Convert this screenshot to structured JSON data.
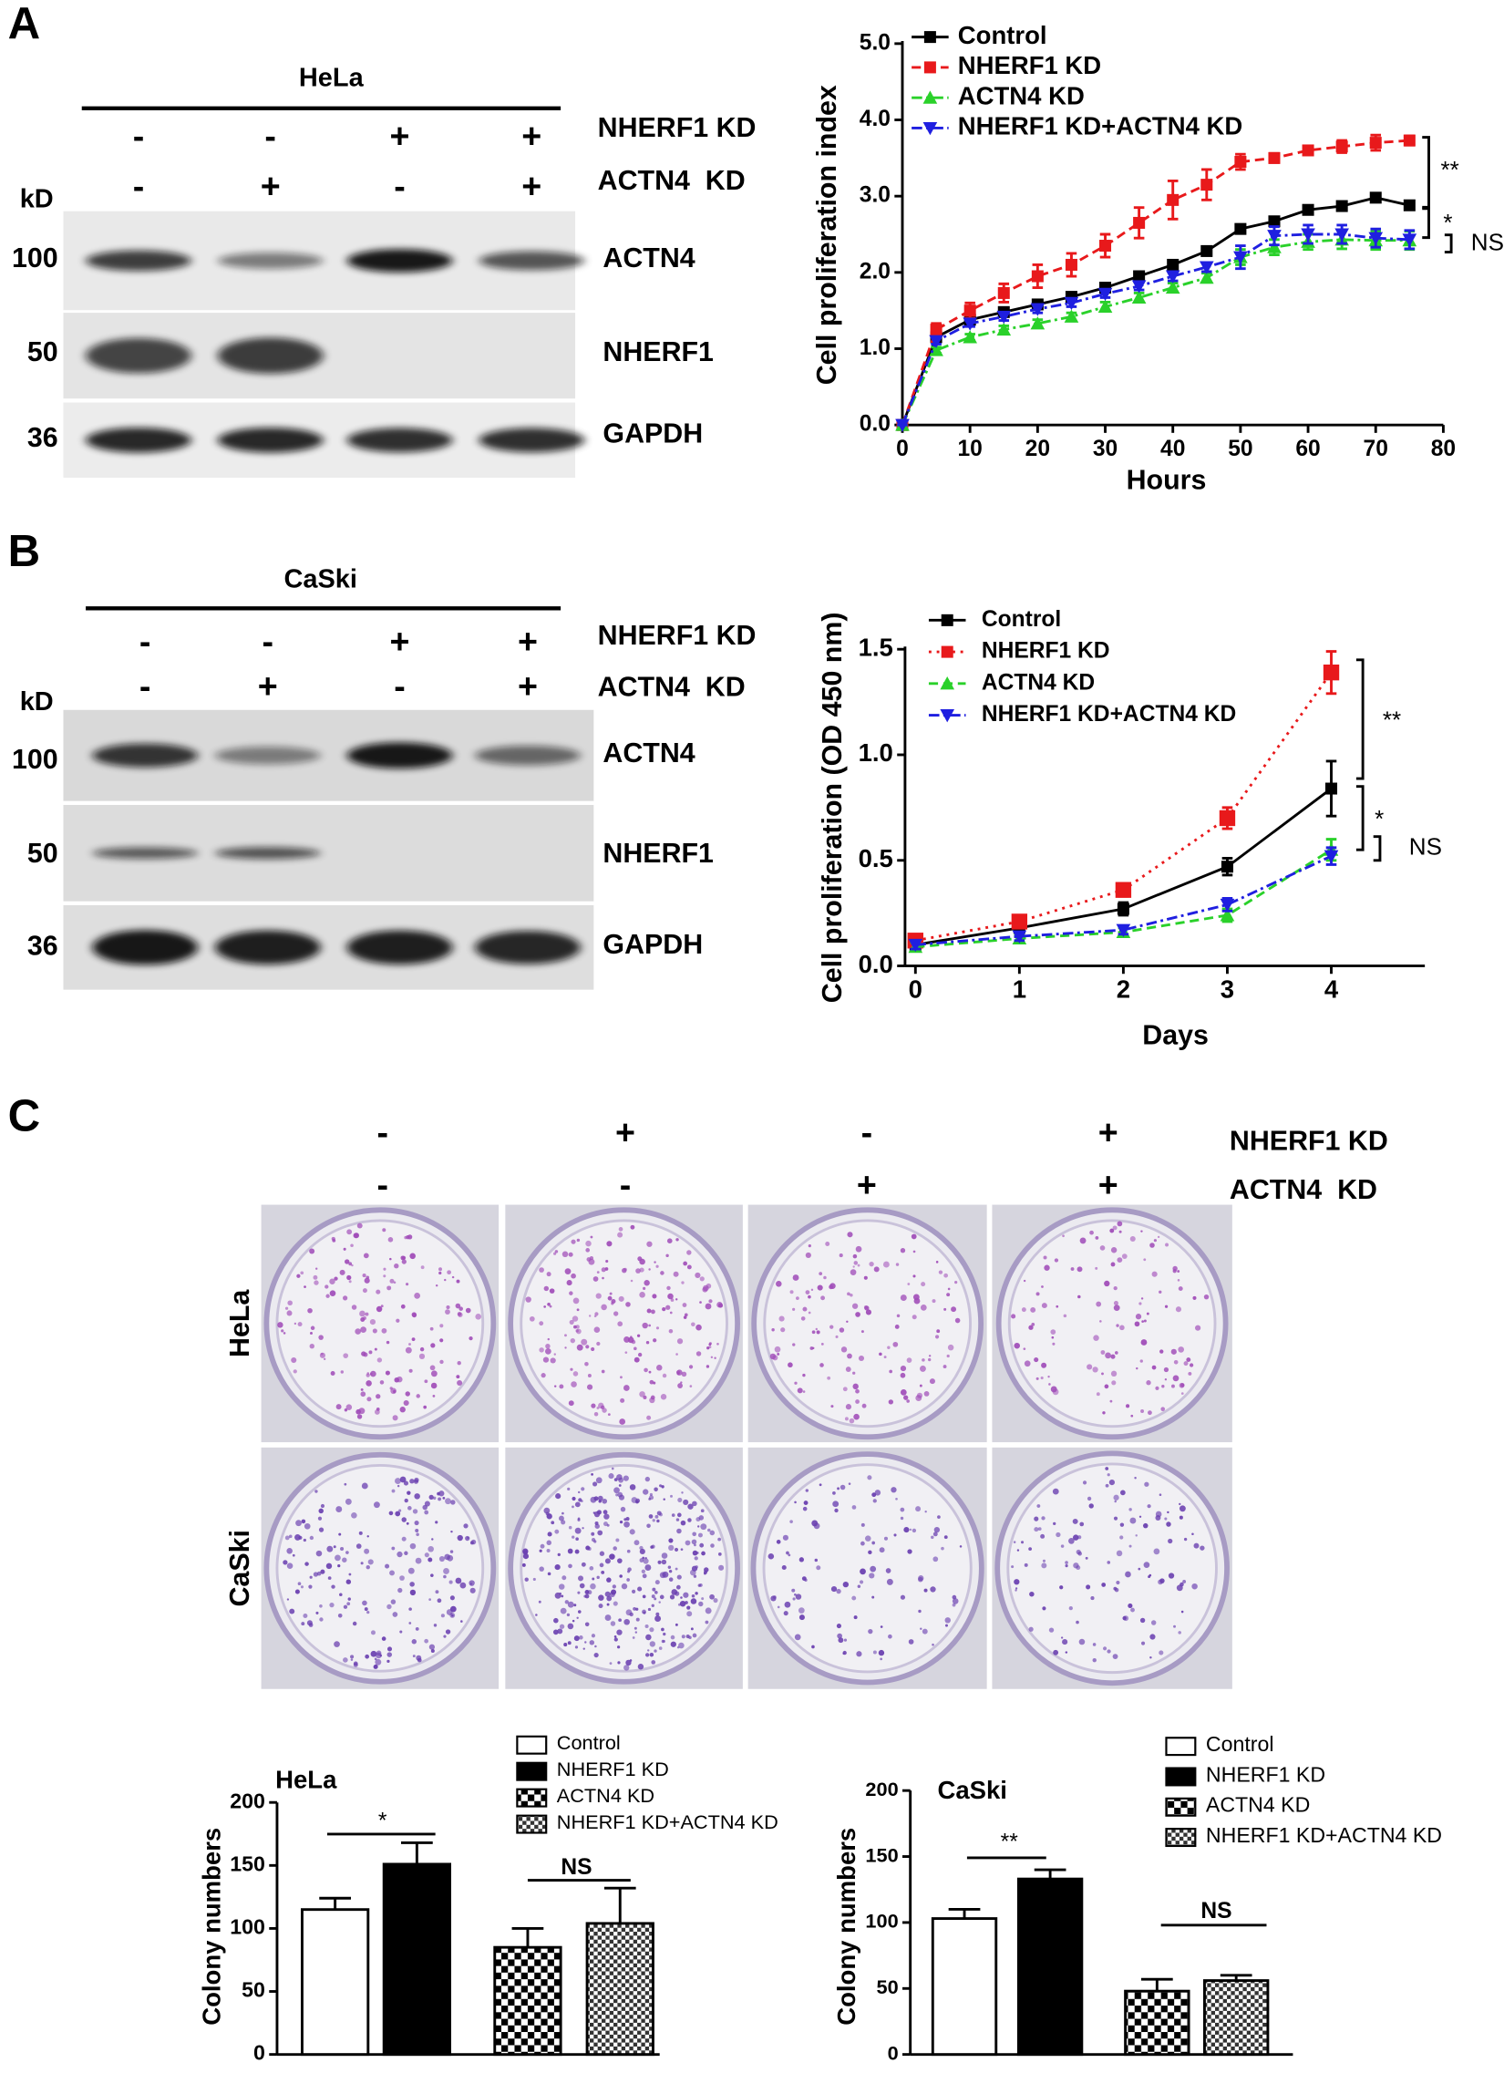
{
  "panel_labels": [
    "A",
    "B",
    "C"
  ],
  "blots": [
    {
      "cell_line": "HeLa",
      "unit": "kD",
      "conditions": [
        {
          "label": "NHERF1 KD",
          "signs": [
            "-",
            "-",
            "+",
            "+"
          ]
        },
        {
          "label": "ACTN4  KD",
          "signs": [
            "-",
            "+",
            "-",
            "+"
          ]
        }
      ],
      "rows": [
        {
          "marker": "100",
          "protein": "ACTN4"
        },
        {
          "marker": "50",
          "protein": "NHERF1"
        },
        {
          "marker": "36",
          "protein": "GAPDH"
        }
      ]
    },
    {
      "cell_line": "CaSki",
      "unit": "kD",
      "conditions": [
        {
          "label": "NHERF1 KD",
          "signs": [
            "-",
            "-",
            "+",
            "+"
          ]
        },
        {
          "label": "ACTN4  KD",
          "signs": [
            "-",
            "+",
            "-",
            "+"
          ]
        }
      ],
      "rows": [
        {
          "marker": "100",
          "protein": "ACTN4"
        },
        {
          "marker": "50",
          "protein": "NHERF1"
        },
        {
          "marker": "36",
          "protein": "GAPDH"
        }
      ]
    }
  ],
  "colony": {
    "conditions": [
      {
        "label": "NHERF1 KD",
        "signs": [
          "-",
          "+",
          "-",
          "+"
        ]
      },
      {
        "label": "ACTN4  KD",
        "signs": [
          "-",
          "-",
          "+",
          "+"
        ]
      }
    ],
    "rows": [
      "HeLa",
      "CaSki"
    ]
  },
  "chart_data": [
    {
      "type": "line",
      "xlabel": "Hours",
      "ylabel": "Cell proliferation index",
      "x": [
        0,
        5,
        10,
        15,
        20,
        25,
        30,
        35,
        40,
        45,
        50,
        55,
        60,
        65,
        70,
        75
      ],
      "xlim": [
        0,
        80
      ],
      "xticks": [
        0,
        10,
        20,
        30,
        40,
        50,
        60,
        70,
        80
      ],
      "ylim": [
        0,
        5
      ],
      "yticks": [
        {
          "value": 0,
          "label": "0.0"
        },
        {
          "value": 1,
          "label": "1.0"
        },
        {
          "value": 2,
          "label": "2.0"
        },
        {
          "value": 3,
          "label": "3.0"
        },
        {
          "value": 4,
          "label": "4.0"
        },
        {
          "value": 5,
          "label": "5.0"
        }
      ],
      "series": [
        {
          "name": "Control",
          "color": "#000000",
          "marker": "square",
          "dash": "solid",
          "values": [
            0,
            1.15,
            1.38,
            1.48,
            1.58,
            1.68,
            1.8,
            1.95,
            2.1,
            2.28,
            2.57,
            2.67,
            2.82,
            2.87,
            2.98,
            2.88
          ],
          "errors": [
            0,
            0.04,
            0.04,
            0.04,
            0.05,
            0.05,
            0.05,
            0.05,
            0.05,
            0.05,
            0.05,
            0.05,
            0.05,
            0.05,
            0.04,
            0.04
          ]
        },
        {
          "name": "NHERF1 KD",
          "color": "#e8191b",
          "marker": "square",
          "dash": "dash",
          "values": [
            0,
            1.25,
            1.5,
            1.73,
            1.95,
            2.1,
            2.35,
            2.65,
            2.95,
            3.15,
            3.45,
            3.5,
            3.6,
            3.65,
            3.7,
            3.73
          ],
          "errors": [
            0,
            0.08,
            0.1,
            0.12,
            0.15,
            0.15,
            0.15,
            0.2,
            0.25,
            0.2,
            0.1,
            0.06,
            0.05,
            0.08,
            0.1,
            0.06
          ]
        },
        {
          "name": "ACTN4 KD",
          "color": "#2ad12a",
          "marker": "triangle-up",
          "dash": "dashdot",
          "values": [
            0,
            0.98,
            1.15,
            1.25,
            1.33,
            1.42,
            1.55,
            1.67,
            1.8,
            1.93,
            2.2,
            2.33,
            2.4,
            2.43,
            2.42,
            2.42
          ],
          "errors": [
            0,
            0.04,
            0.04,
            0.05,
            0.05,
            0.05,
            0.06,
            0.06,
            0.06,
            0.06,
            0.1,
            0.1,
            0.1,
            0.12,
            0.12,
            0.12
          ]
        },
        {
          "name": "NHERF1 KD+ACTN4 KD",
          "color": "#1f1fe0",
          "marker": "triangle-down",
          "dash": "dashdot",
          "values": [
            0,
            1.1,
            1.33,
            1.42,
            1.52,
            1.6,
            1.72,
            1.82,
            1.95,
            2.07,
            2.2,
            2.48,
            2.5,
            2.5,
            2.45,
            2.43
          ],
          "errors": [
            0,
            0.04,
            0.04,
            0.05,
            0.05,
            0.05,
            0.05,
            0.05,
            0.06,
            0.06,
            0.15,
            0.12,
            0.12,
            0.12,
            0.12,
            0.12
          ]
        }
      ],
      "annotations": [
        "**",
        "*",
        "NS"
      ]
    },
    {
      "type": "line",
      "xlabel": "Days",
      "ylabel": "Cell proliferation (OD 450 nm)",
      "x": [
        0,
        1,
        2,
        3,
        4
      ],
      "xlim": [
        -0.1,
        4.9
      ],
      "xticks": [
        0,
        1,
        2,
        3,
        4
      ],
      "ylim": [
        0,
        1.5
      ],
      "yticks": [
        {
          "value": 0,
          "label": "0.0"
        },
        {
          "value": 0.5,
          "label": "0.5"
        },
        {
          "value": 1,
          "label": "1.0"
        },
        {
          "value": 1.5,
          "label": "1.5"
        }
      ],
      "series": [
        {
          "name": "Control",
          "color": "#000000",
          "marker": "square",
          "dash": "solid",
          "values": [
            0.1,
            0.18,
            0.27,
            0.47,
            0.84
          ],
          "errors": [
            0.02,
            0.02,
            0.03,
            0.04,
            0.13
          ]
        },
        {
          "name": "NHERF1 KD",
          "color": "#e8191b",
          "marker": "square",
          "dash": "dot",
          "values": [
            0.12,
            0.21,
            0.36,
            0.7,
            1.39
          ],
          "errors": [
            0.02,
            0.02,
            0.03,
            0.05,
            0.1
          ]
        },
        {
          "name": "ACTN4 KD",
          "color": "#2ad12a",
          "marker": "triangle-up",
          "dash": "dash",
          "values": [
            0.09,
            0.13,
            0.16,
            0.24,
            0.55
          ],
          "errors": [
            0.02,
            0.02,
            0.02,
            0.03,
            0.05
          ]
        },
        {
          "name": "NHERF1 KD+ACTN4 KD",
          "color": "#1f1fe0",
          "marker": "triangle-down",
          "dash": "dashdot",
          "values": [
            0.1,
            0.14,
            0.17,
            0.29,
            0.52
          ],
          "errors": [
            0.02,
            0.02,
            0.02,
            0.03,
            0.04
          ]
        }
      ],
      "annotations": [
        "**",
        "*",
        "NS"
      ]
    },
    {
      "type": "bar",
      "title": "HeLa",
      "ylabel": "Colony numbers",
      "ylim": [
        0,
        200
      ],
      "yticks": [
        0,
        50,
        100,
        150,
        200
      ],
      "series": [
        {
          "name": "Control",
          "pattern": "white",
          "values": [
            115
          ],
          "errors": [
            9
          ]
        },
        {
          "name": "NHERF1 KD",
          "pattern": "black",
          "values": [
            151
          ],
          "errors": [
            17
          ]
        },
        {
          "name": "ACTN4 KD",
          "pattern": "checker",
          "values": [
            85
          ],
          "errors": [
            15
          ]
        },
        {
          "name": "NHERF1 KD+ACTN4 KD",
          "pattern": "fine-checker",
          "values": [
            104
          ],
          "errors": [
            28
          ]
        }
      ],
      "annotations": [
        "*",
        "NS"
      ]
    },
    {
      "type": "bar",
      "title": "CaSki",
      "ylabel": "Colony numbers",
      "ylim": [
        0,
        200
      ],
      "yticks": [
        0,
        50,
        100,
        150,
        200
      ],
      "series": [
        {
          "name": "Control",
          "pattern": "white",
          "values": [
            103
          ],
          "errors": [
            7
          ]
        },
        {
          "name": "NHERF1 KD",
          "pattern": "black",
          "values": [
            133
          ],
          "errors": [
            7
          ]
        },
        {
          "name": "ACTN4 KD",
          "pattern": "checker",
          "values": [
            48
          ],
          "errors": [
            9
          ]
        },
        {
          "name": "NHERF1 KD+ACTN4 KD",
          "pattern": "fine-checker",
          "values": [
            56
          ],
          "errors": [
            4
          ]
        }
      ],
      "annotations": [
        "**",
        "NS"
      ]
    }
  ]
}
